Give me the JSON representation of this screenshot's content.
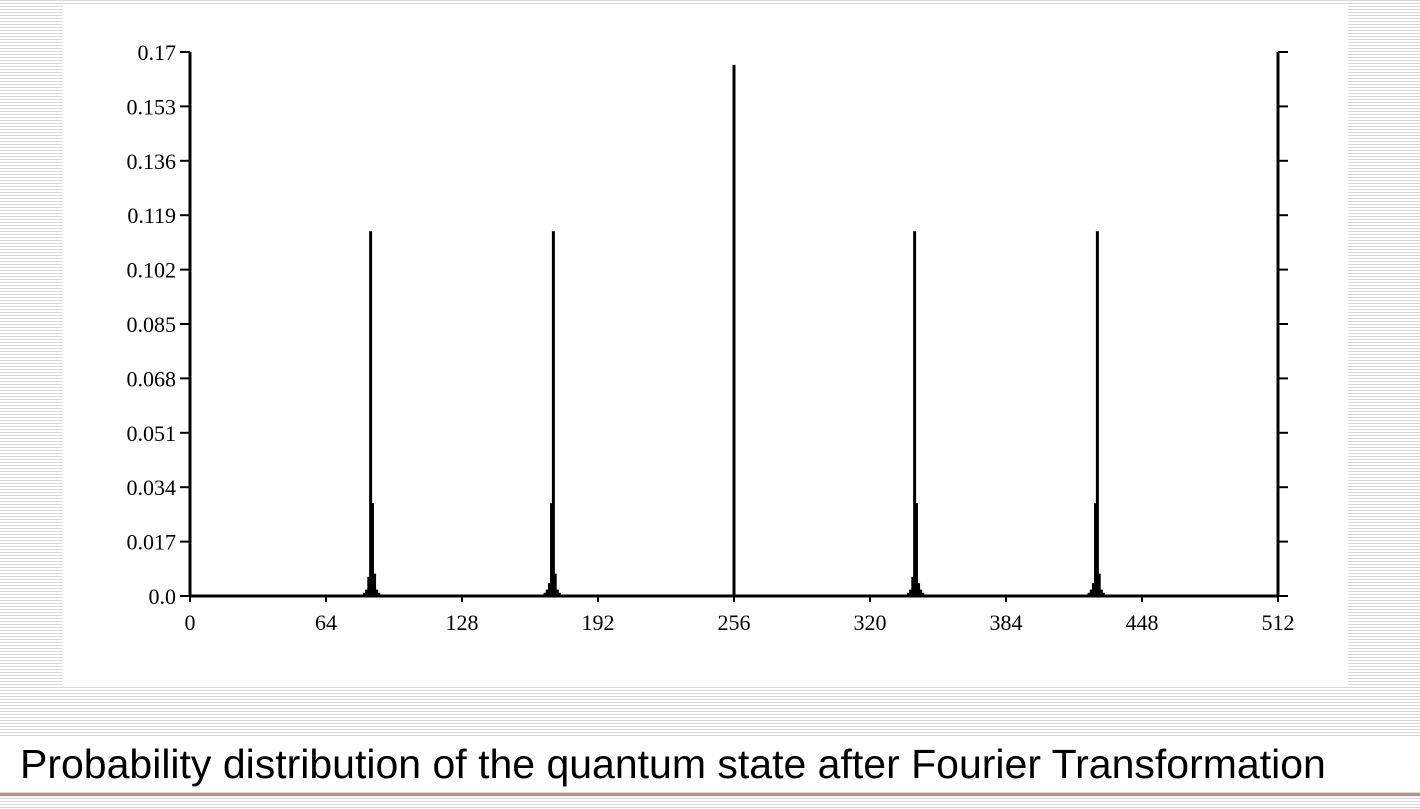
{
  "caption": "Probability distribution of the quantum state after Fourier Transformation",
  "colors": {
    "rule": "#c8878a",
    "bars": "#000000"
  },
  "chart_data": {
    "type": "bar",
    "title": "",
    "xlabel": "",
    "ylabel": "",
    "xlim": [
      0,
      512
    ],
    "ylim": [
      0,
      0.17
    ],
    "grid": false,
    "x_ticks": [
      "0",
      "64",
      "128",
      "192",
      "256",
      "320",
      "384",
      "448",
      "512"
    ],
    "y_ticks": [
      "0.0",
      "0.017",
      "0.034",
      "0.051",
      "0.068",
      "0.085",
      "0.102",
      "0.119",
      "0.136",
      "0.153",
      "0.17"
    ],
    "peaks": [
      {
        "x": 256,
        "value": 0.166
      },
      {
        "x": 85,
        "value": 0.114
      },
      {
        "x": 171,
        "value": 0.114
      },
      {
        "x": 341,
        "value": 0.114
      },
      {
        "x": 427,
        "value": 0.114
      }
    ],
    "side_lobes": [
      {
        "x": 84,
        "value": 0.006
      },
      {
        "x": 86,
        "value": 0.029
      },
      {
        "x": 87,
        "value": 0.007
      },
      {
        "x": 83,
        "value": 0.002
      },
      {
        "x": 88,
        "value": 0.002
      },
      {
        "x": 82,
        "value": 0.001
      },
      {
        "x": 89,
        "value": 0.001
      },
      {
        "x": 168,
        "value": 0.002
      },
      {
        "x": 169,
        "value": 0.004
      },
      {
        "x": 170,
        "value": 0.029
      },
      {
        "x": 172,
        "value": 0.007
      },
      {
        "x": 173,
        "value": 0.002
      },
      {
        "x": 167,
        "value": 0.001
      },
      {
        "x": 174,
        "value": 0.001
      },
      {
        "x": 339,
        "value": 0.002
      },
      {
        "x": 340,
        "value": 0.006
      },
      {
        "x": 342,
        "value": 0.029
      },
      {
        "x": 343,
        "value": 0.004
      },
      {
        "x": 344,
        "value": 0.002
      },
      {
        "x": 338,
        "value": 0.001
      },
      {
        "x": 345,
        "value": 0.001
      },
      {
        "x": 424,
        "value": 0.002
      },
      {
        "x": 425,
        "value": 0.004
      },
      {
        "x": 426,
        "value": 0.029
      },
      {
        "x": 428,
        "value": 0.007
      },
      {
        "x": 429,
        "value": 0.002
      },
      {
        "x": 423,
        "value": 0.001
      },
      {
        "x": 430,
        "value": 0.001
      }
    ]
  }
}
